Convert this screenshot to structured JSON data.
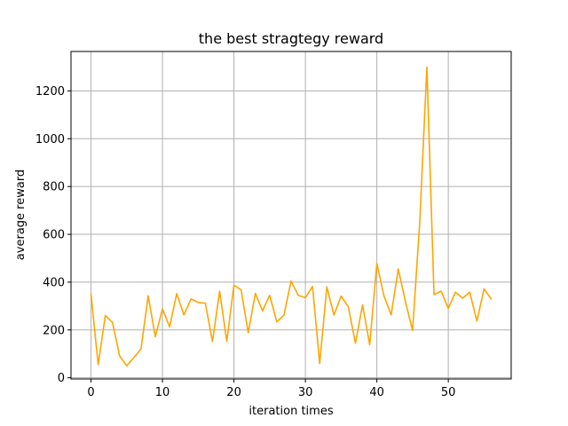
{
  "chart_data": {
    "type": "line",
    "title": "the best stragtegy reward",
    "xlabel": "iteration times",
    "ylabel": "average reward",
    "xlim": [
      -2.8,
      58.8
    ],
    "ylim": [
      -5,
      1365
    ],
    "x_ticks": [
      0,
      10,
      20,
      30,
      40,
      50
    ],
    "y_ticks": [
      0,
      200,
      400,
      600,
      800,
      1000,
      1200
    ],
    "grid": true,
    "series": [
      {
        "color": "#ffa500",
        "x": [
          0,
          1,
          2,
          3,
          4,
          5,
          6,
          7,
          8,
          9,
          10,
          11,
          12,
          13,
          14,
          15,
          16,
          17,
          18,
          19,
          20,
          21,
          22,
          23,
          24,
          25,
          26,
          27,
          28,
          29,
          30,
          31,
          32,
          33,
          34,
          35,
          36,
          37,
          38,
          39,
          40,
          41,
          42,
          43,
          44,
          45,
          46,
          47,
          48,
          49,
          50,
          51,
          52,
          53,
          54,
          55,
          56
        ],
        "values": [
          350,
          55,
          260,
          232,
          92,
          50,
          85,
          120,
          343,
          172,
          288,
          213,
          352,
          263,
          330,
          315,
          312,
          152,
          362,
          152,
          387,
          368,
          188,
          353,
          280,
          345,
          234,
          262,
          405,
          345,
          335,
          382,
          60,
          380,
          262,
          342,
          298,
          145,
          305,
          138,
          478,
          342,
          263,
          455,
          318,
          198,
          650,
          1300,
          348,
          362,
          290,
          358,
          333,
          358,
          237,
          372,
          330
        ]
      }
    ]
  }
}
